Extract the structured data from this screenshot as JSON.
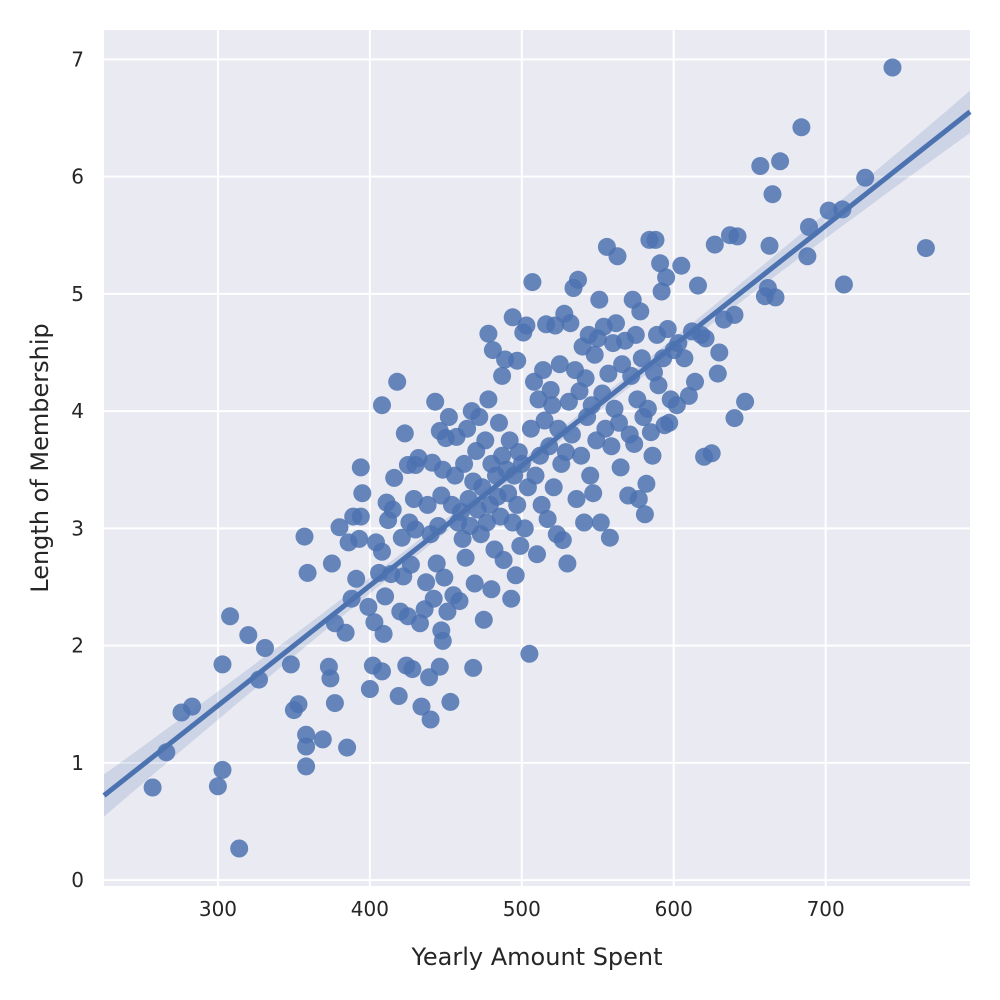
{
  "chart_data": {
    "type": "scatter",
    "title": "",
    "xlabel": "Yearly Amount Spent",
    "ylabel": "Length of Membership",
    "xlim": [
      225,
      795
    ],
    "ylim": [
      -0.05,
      7.25
    ],
    "grid": true,
    "x_ticks": [
      300,
      400,
      500,
      600,
      700
    ],
    "y_ticks": [
      0,
      1,
      2,
      3,
      4,
      5,
      6,
      7
    ],
    "x_tick_labels": [
      "300",
      "400",
      "500",
      "600",
      "700"
    ],
    "y_tick_labels": [
      "0",
      "1",
      "2",
      "3",
      "4",
      "5",
      "6",
      "7"
    ],
    "colors": {
      "background": "#EAEAF2",
      "grid": "#FFFFFF",
      "points": "#4C72B0",
      "line": "#4C72B0"
    },
    "regression": {
      "slope": 0.01023,
      "intercept": -1.58,
      "ci_halfwidth_edge": 0.18,
      "ci_halfwidth_center": 0.05
    },
    "points": [
      [
        257,
        0.79
      ],
      [
        266,
        1.09
      ],
      [
        276,
        1.43
      ],
      [
        283,
        1.48
      ],
      [
        300,
        0.8
      ],
      [
        303,
        0.94
      ],
      [
        303,
        1.84
      ],
      [
        308,
        2.25
      ],
      [
        314,
        0.27
      ],
      [
        320,
        2.09
      ],
      [
        327,
        1.71
      ],
      [
        331,
        1.98
      ],
      [
        348,
        1.84
      ],
      [
        350,
        1.45
      ],
      [
        353,
        1.5
      ],
      [
        357,
        2.93
      ],
      [
        358,
        0.97
      ],
      [
        358,
        1.14
      ],
      [
        358,
        1.24
      ],
      [
        359,
        2.62
      ],
      [
        369,
        1.2
      ],
      [
        373,
        1.82
      ],
      [
        374,
        1.72
      ],
      [
        375,
        2.7
      ],
      [
        377,
        1.51
      ],
      [
        377,
        2.19
      ],
      [
        380,
        3.01
      ],
      [
        384,
        2.11
      ],
      [
        385,
        1.13
      ],
      [
        386,
        2.88
      ],
      [
        388,
        2.4
      ],
      [
        389,
        3.1
      ],
      [
        391,
        2.57
      ],
      [
        393,
        2.91
      ],
      [
        394,
        3.1
      ],
      [
        394,
        3.52
      ],
      [
        395,
        3.3
      ],
      [
        399,
        2.33
      ],
      [
        400,
        1.63
      ],
      [
        402,
        1.83
      ],
      [
        403,
        2.2
      ],
      [
        404,
        2.88
      ],
      [
        406,
        2.62
      ],
      [
        408,
        1.78
      ],
      [
        408,
        2.8
      ],
      [
        408,
        4.05
      ],
      [
        409,
        2.1
      ],
      [
        410,
        2.42
      ],
      [
        411,
        3.22
      ],
      [
        412,
        3.07
      ],
      [
        414,
        2.61
      ],
      [
        415,
        3.16
      ],
      [
        416,
        3.43
      ],
      [
        418,
        4.25
      ],
      [
        419,
        1.57
      ],
      [
        420,
        2.29
      ],
      [
        421,
        2.92
      ],
      [
        422,
        2.59
      ],
      [
        423,
        3.81
      ],
      [
        424,
        1.83
      ],
      [
        425,
        3.54
      ],
      [
        425,
        2.25
      ],
      [
        426,
        3.05
      ],
      [
        427,
        2.69
      ],
      [
        428,
        1.8
      ],
      [
        429,
        3.25
      ],
      [
        430,
        2.99
      ],
      [
        430,
        3.54
      ],
      [
        432,
        3.6
      ],
      [
        433,
        2.19
      ],
      [
        434,
        1.48
      ],
      [
        436,
        2.31
      ],
      [
        437,
        2.54
      ],
      [
        438,
        3.2
      ],
      [
        439,
        1.73
      ],
      [
        440,
        2.95
      ],
      [
        440,
        1.37
      ],
      [
        441,
        3.56
      ],
      [
        442,
        2.4
      ],
      [
        443,
        4.08
      ],
      [
        444,
        2.7
      ],
      [
        445,
        3.02
      ],
      [
        446,
        3.83
      ],
      [
        446,
        1.82
      ],
      [
        447,
        2.13
      ],
      [
        447,
        3.28
      ],
      [
        448,
        2.04
      ],
      [
        448,
        3.5
      ],
      [
        449,
        2.58
      ],
      [
        450,
        3.77
      ],
      [
        451,
        2.29
      ],
      [
        452,
        3.95
      ],
      [
        453,
        1.52
      ],
      [
        454,
        3.2
      ],
      [
        455,
        2.43
      ],
      [
        456,
        3.45
      ],
      [
        457,
        3.78
      ],
      [
        458,
        3.05
      ],
      [
        459,
        2.38
      ],
      [
        460,
        3.14
      ],
      [
        461,
        2.91
      ],
      [
        462,
        3.55
      ],
      [
        463,
        2.75
      ],
      [
        464,
        3.85
      ],
      [
        465,
        3.25
      ],
      [
        466,
        3.02
      ],
      [
        467,
        4.0
      ],
      [
        468,
        1.81
      ],
      [
        468,
        3.4
      ],
      [
        469,
        2.53
      ],
      [
        470,
        3.66
      ],
      [
        471,
        3.16
      ],
      [
        472,
        3.95
      ],
      [
        473,
        2.95
      ],
      [
        474,
        3.35
      ],
      [
        475,
        2.22
      ],
      [
        476,
        3.75
      ],
      [
        477,
        3.05
      ],
      [
        478,
        4.1
      ],
      [
        478,
        4.66
      ],
      [
        479,
        3.2
      ],
      [
        480,
        2.48
      ],
      [
        480,
        3.55
      ],
      [
        481,
        4.52
      ],
      [
        482,
        2.82
      ],
      [
        483,
        3.45
      ],
      [
        484,
        3.27
      ],
      [
        485,
        3.9
      ],
      [
        486,
        3.1
      ],
      [
        487,
        4.3
      ],
      [
        487,
        3.62
      ],
      [
        488,
        2.73
      ],
      [
        489,
        4.44
      ],
      [
        490,
        3.5
      ],
      [
        491,
        3.3
      ],
      [
        492,
        3.75
      ],
      [
        493,
        2.4
      ],
      [
        494,
        4.8
      ],
      [
        494,
        3.05
      ],
      [
        495,
        3.45
      ],
      [
        496,
        2.6
      ],
      [
        497,
        4.43
      ],
      [
        497,
        3.2
      ],
      [
        498,
        3.65
      ],
      [
        499,
        2.85
      ],
      [
        500,
        3.55
      ],
      [
        501,
        4.67
      ],
      [
        502,
        3.0
      ],
      [
        503,
        4.73
      ],
      [
        504,
        3.35
      ],
      [
        505,
        1.93
      ],
      [
        506,
        3.85
      ],
      [
        507,
        5.1
      ],
      [
        508,
        4.25
      ],
      [
        509,
        3.45
      ],
      [
        510,
        2.78
      ],
      [
        511,
        4.1
      ],
      [
        512,
        3.62
      ],
      [
        513,
        3.2
      ],
      [
        514,
        4.35
      ],
      [
        515,
        3.92
      ],
      [
        516,
        4.74
      ],
      [
        517,
        3.08
      ],
      [
        518,
        3.7
      ],
      [
        519,
        4.18
      ],
      [
        520,
        4.05
      ],
      [
        521,
        3.35
      ],
      [
        522,
        4.73
      ],
      [
        523,
        2.95
      ],
      [
        524,
        3.85
      ],
      [
        525,
        4.4
      ],
      [
        526,
        3.55
      ],
      [
        527,
        2.9
      ],
      [
        528,
        4.83
      ],
      [
        529,
        3.65
      ],
      [
        530,
        2.7
      ],
      [
        531,
        4.08
      ],
      [
        532,
        4.75
      ],
      [
        533,
        3.8
      ],
      [
        534,
        5.05
      ],
      [
        535,
        4.35
      ],
      [
        536,
        3.25
      ],
      [
        537,
        5.12
      ],
      [
        538,
        4.17
      ],
      [
        539,
        3.62
      ],
      [
        540,
        4.55
      ],
      [
        541,
        3.05
      ],
      [
        542,
        4.28
      ],
      [
        543,
        3.95
      ],
      [
        544,
        4.65
      ],
      [
        545,
        3.45
      ],
      [
        546,
        4.05
      ],
      [
        547,
        3.3
      ],
      [
        548,
        4.48
      ],
      [
        549,
        3.75
      ],
      [
        550,
        4.62
      ],
      [
        551,
        4.95
      ],
      [
        552,
        3.05
      ],
      [
        553,
        4.15
      ],
      [
        554,
        4.72
      ],
      [
        555,
        3.85
      ],
      [
        556,
        5.4
      ],
      [
        557,
        4.32
      ],
      [
        558,
        2.92
      ],
      [
        559,
        3.7
      ],
      [
        560,
        4.58
      ],
      [
        561,
        4.02
      ],
      [
        562,
        4.75
      ],
      [
        563,
        5.32
      ],
      [
        564,
        3.9
      ],
      [
        565,
        3.52
      ],
      [
        566,
        4.4
      ],
      [
        568,
        4.6
      ],
      [
        570,
        3.28
      ],
      [
        571,
        3.8
      ],
      [
        572,
        4.3
      ],
      [
        573,
        4.95
      ],
      [
        574,
        3.72
      ],
      [
        575,
        4.65
      ],
      [
        576,
        4.1
      ],
      [
        577,
        3.25
      ],
      [
        578,
        4.85
      ],
      [
        579,
        4.45
      ],
      [
        580,
        3.95
      ],
      [
        581,
        3.12
      ],
      [
        582,
        3.38
      ],
      [
        583,
        4.02
      ],
      [
        584,
        5.46
      ],
      [
        585,
        3.82
      ],
      [
        586,
        3.62
      ],
      [
        587,
        4.33
      ],
      [
        588,
        5.46
      ],
      [
        589,
        4.65
      ],
      [
        590,
        4.22
      ],
      [
        591,
        5.26
      ],
      [
        592,
        5.02
      ],
      [
        593,
        4.45
      ],
      [
        594,
        3.88
      ],
      [
        595,
        5.14
      ],
      [
        596,
        4.7
      ],
      [
        597,
        3.9
      ],
      [
        598,
        4.1
      ],
      [
        600,
        4.52
      ],
      [
        602,
        4.05
      ],
      [
        603,
        4.58
      ],
      [
        605,
        5.24
      ],
      [
        607,
        4.45
      ],
      [
        610,
        4.13
      ],
      [
        612,
        4.68
      ],
      [
        614,
        4.25
      ],
      [
        616,
        5.07
      ],
      [
        618,
        4.65
      ],
      [
        620,
        3.61
      ],
      [
        621,
        4.62
      ],
      [
        625,
        3.64
      ],
      [
        627,
        5.42
      ],
      [
        629,
        4.32
      ],
      [
        630,
        4.5
      ],
      [
        633,
        4.78
      ],
      [
        637,
        5.5
      ],
      [
        640,
        3.94
      ],
      [
        640,
        4.82
      ],
      [
        642,
        5.49
      ],
      [
        647,
        4.08
      ],
      [
        657,
        6.09
      ],
      [
        660,
        4.98
      ],
      [
        662,
        5.05
      ],
      [
        663,
        5.41
      ],
      [
        665,
        5.85
      ],
      [
        667,
        4.97
      ],
      [
        670,
        6.13
      ],
      [
        684,
        6.42
      ],
      [
        688,
        5.32
      ],
      [
        689,
        5.57
      ],
      [
        702,
        5.71
      ],
      [
        711,
        5.72
      ],
      [
        712,
        5.08
      ],
      [
        726,
        5.99
      ],
      [
        744,
        6.93
      ],
      [
        766,
        5.39
      ]
    ]
  }
}
